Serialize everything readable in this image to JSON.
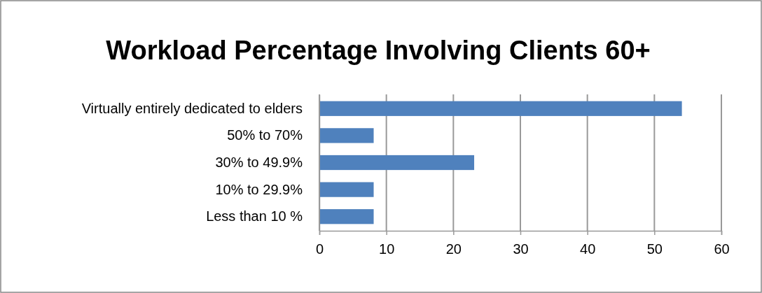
{
  "chart_data": {
    "type": "bar",
    "orientation": "horizontal",
    "title": "Workload Percentage Involving Clients 60+",
    "categories": [
      "Virtually entirely dedicated to elders",
      "50% to 70%",
      "30% to 49.9%",
      "10% to 29.9%",
      "Less than 10 %"
    ],
    "values": [
      54,
      8,
      23,
      8,
      8
    ],
    "color": "#4f81bd",
    "xlim": [
      0,
      60
    ],
    "xticks": [
      0,
      10,
      20,
      30,
      40,
      50,
      60
    ],
    "grid": "x"
  }
}
